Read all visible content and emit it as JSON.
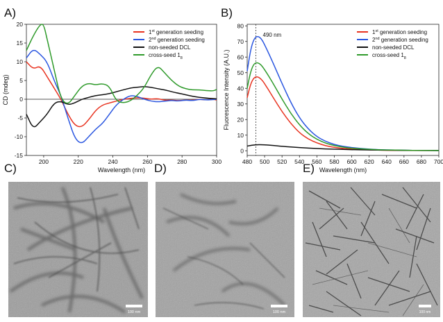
{
  "panels": {
    "a": "A)",
    "b": "B)",
    "c": "C)",
    "d": "D)",
    "e": "E)"
  },
  "scale_bars": {
    "c": "100 nm",
    "d": "100 nm",
    "e": "100 nm"
  },
  "colors": {
    "first": "#e8321f",
    "second": "#2a56e0",
    "nonseeded": "#111111",
    "cross": "#2e9a2a"
  },
  "chart_data": [
    {
      "type": "line",
      "ylabel": "CD (mdeg)",
      "xlabel": "Wavelength (nm)",
      "xlim": [
        190,
        300
      ],
      "ylim": [
        -15,
        20
      ],
      "xticks": [
        200,
        220,
        240,
        260,
        280,
        300
      ],
      "yticks": [
        -15,
        -10,
        -5,
        0,
        5,
        10,
        15,
        20
      ],
      "zero_line": true,
      "legend_position": "top-right",
      "series": [
        {
          "name": "1st generation seeding",
          "color_key": "first",
          "x": [
            190,
            194,
            198,
            202,
            206,
            210,
            214,
            218,
            222,
            226,
            230,
            234,
            238,
            242,
            246,
            250,
            254,
            258,
            262,
            266,
            270,
            274,
            278,
            282,
            286,
            290,
            294,
            298,
            300
          ],
          "y": [
            10,
            8,
            9,
            6,
            3,
            0,
            -4,
            -7,
            -7.5,
            -5.5,
            -3,
            -1.5,
            -1,
            -0.5,
            0,
            0.2,
            0.4,
            0.3,
            0,
            0.2,
            -0.3,
            -0.2,
            -0.4,
            -0.2,
            -0.3,
            0,
            -0.2,
            0,
            -0.2
          ]
        },
        {
          "name": "2nd generation seeding",
          "color_key": "second",
          "x": [
            190,
            194,
            198,
            202,
            206,
            210,
            214,
            218,
            222,
            226,
            230,
            234,
            238,
            242,
            246,
            250,
            254,
            258,
            262,
            266,
            270,
            274,
            278,
            282,
            286,
            290,
            294,
            298,
            300
          ],
          "y": [
            11,
            13.5,
            12,
            10,
            5,
            1,
            -5,
            -10.5,
            -12,
            -10,
            -8,
            -6.5,
            -4,
            -1.5,
            0,
            1,
            0.8,
            0,
            -0.5,
            -0.7,
            -0.5,
            -0.3,
            -0.5,
            -0.2,
            -0.4,
            0,
            -0.2,
            -0.1,
            0
          ]
        },
        {
          "name": "non-seeded DCL",
          "color_key": "nonseeded",
          "x": [
            190,
            194,
            198,
            202,
            206,
            210,
            214,
            218,
            222,
            226,
            230,
            234,
            238,
            242,
            246,
            250,
            254,
            258,
            262,
            266,
            270,
            274,
            278,
            282,
            286,
            290,
            294,
            298,
            300
          ],
          "y": [
            -4,
            -8,
            -6,
            -4,
            -1,
            -0.5,
            -1.5,
            -1,
            0,
            0.5,
            1,
            1.2,
            1.5,
            2,
            2.5,
            3,
            3.2,
            3.4,
            3.2,
            2.8,
            2.5,
            2,
            1.6,
            1.2,
            0.8,
            0.5,
            0.3,
            0.2,
            0.1
          ]
        },
        {
          "name": "cross-seed 1",
          "name_sub": "8",
          "color_key": "cross",
          "x": [
            190,
            194,
            198,
            200,
            202,
            206,
            210,
            214,
            218,
            222,
            226,
            230,
            234,
            238,
            242,
            246,
            250,
            254,
            258,
            262,
            266,
            270,
            274,
            278,
            282,
            286,
            290,
            294,
            298,
            300
          ],
          "y": [
            13,
            17,
            20,
            20,
            16,
            8,
            0,
            -1.5,
            1,
            3.5,
            4.3,
            3.8,
            4.2,
            3.5,
            -0.5,
            -1,
            -0.5,
            1,
            3,
            6.5,
            9,
            7,
            5,
            3.5,
            2.8,
            2.5,
            2.5,
            2.3,
            2.2,
            2.6
          ]
        }
      ]
    },
    {
      "type": "line",
      "ylabel": "Fluorescence Intensity (A.U.)",
      "xlabel": "Wavelength (nm)",
      "xlim": [
        480,
        700
      ],
      "ylim": [
        -3,
        81
      ],
      "xticks": [
        480,
        500,
        520,
        540,
        560,
        580,
        600,
        620,
        640,
        660,
        680,
        700
      ],
      "yticks": [
        0,
        10,
        20,
        30,
        40,
        50,
        60,
        70,
        80
      ],
      "annotation": {
        "x": 490,
        "label": "490 nm"
      },
      "legend_position": "top-right",
      "series": [
        {
          "name": "1st generation seeding",
          "color_key": "first",
          "x": [
            480,
            484,
            488,
            492,
            496,
            500,
            510,
            520,
            530,
            540,
            550,
            560,
            570,
            580,
            590,
            600,
            620,
            640,
            660,
            680,
            700
          ],
          "y": [
            34,
            43,
            47,
            47.5,
            46,
            43,
            34,
            25,
            17.5,
            11.5,
            7.5,
            5,
            3.2,
            2.2,
            1.5,
            1,
            0.6,
            0.3,
            0.2,
            0.1,
            0.1
          ]
        },
        {
          "name": "2nd generation seeding",
          "color_key": "second",
          "x": [
            480,
            484,
            488,
            492,
            496,
            500,
            510,
            520,
            530,
            540,
            550,
            560,
            570,
            580,
            590,
            600,
            620,
            640,
            660,
            680,
            700
          ],
          "y": [
            51,
            65,
            72,
            73.5,
            72,
            68,
            56,
            43,
            31,
            21,
            14,
            9,
            6,
            4,
            2.8,
            2,
            1,
            0.5,
            0.3,
            0.2,
            0.1
          ]
        },
        {
          "name": "non-seeded DCL",
          "color_key": "nonseeded",
          "x": [
            480,
            490,
            500,
            510,
            520,
            540,
            560,
            580,
            600,
            620,
            640,
            660,
            680,
            700
          ],
          "y": [
            3,
            4,
            3.8,
            3.4,
            2.8,
            2,
            1.4,
            1,
            0.7,
            0.5,
            0.4,
            0.3,
            0.2,
            0.2
          ]
        },
        {
          "name": "cross-seed 1",
          "name_sub": "8",
          "color_key": "cross",
          "x": [
            480,
            484,
            488,
            492,
            496,
            500,
            510,
            520,
            530,
            540,
            550,
            560,
            570,
            580,
            590,
            600,
            620,
            640,
            660,
            680,
            700
          ],
          "y": [
            40,
            51,
            56,
            56.5,
            55,
            52,
            43,
            33,
            24,
            16.5,
            11,
            7.3,
            4.8,
            3.3,
            2.3,
            1.6,
            0.9,
            0.5,
            0.3,
            0.2,
            0.1
          ]
        }
      ]
    }
  ]
}
